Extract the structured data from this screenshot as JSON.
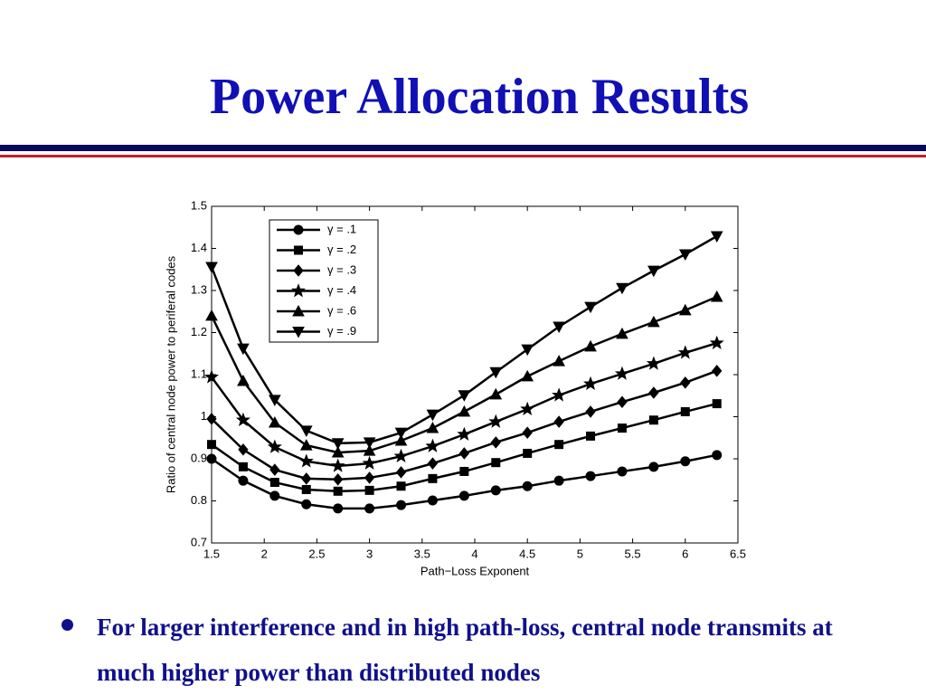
{
  "slide_title": "Power Allocation Results",
  "bullet": "For larger interference and in high path-loss, central node transmits at much higher power than distributed nodes",
  "chart_data": {
    "type": "line",
    "x_label": "Path−Loss Exponent",
    "y_label": "Ratio of central node power to periferal codes",
    "x": [
      1.5,
      1.8,
      2.1,
      2.4,
      2.7,
      3.0,
      3.3,
      3.6,
      3.9,
      4.2,
      4.5,
      4.8,
      5.1,
      5.4,
      5.7,
      6.0,
      6.3
    ],
    "series": [
      {
        "name": "γ = .1",
        "color": "#000000",
        "marker": "circle",
        "values": [
          0.9,
          0.848,
          0.812,
          0.792,
          0.782,
          0.782,
          0.79,
          0.801,
          0.812,
          0.825,
          0.835,
          0.848,
          0.859,
          0.87,
          0.881,
          0.894,
          0.909
        ]
      },
      {
        "name": "γ = .2",
        "color": "#000000",
        "marker": "square",
        "values": [
          0.934,
          0.881,
          0.844,
          0.827,
          0.823,
          0.825,
          0.835,
          0.853,
          0.87,
          0.891,
          0.913,
          0.934,
          0.954,
          0.973,
          0.992,
          1.012,
          1.031
        ]
      },
      {
        "name": "γ = .3",
        "color": "#000000",
        "marker": "diamond",
        "values": [
          0.995,
          0.922,
          0.874,
          0.853,
          0.851,
          0.855,
          0.868,
          0.889,
          0.913,
          0.939,
          0.962,
          0.988,
          1.012,
          1.035,
          1.057,
          1.081,
          1.109
        ]
      },
      {
        "name": "γ = .4",
        "color": "#000000",
        "marker": "star",
        "values": [
          1.094,
          0.992,
          0.928,
          0.894,
          0.883,
          0.889,
          0.906,
          0.93,
          0.958,
          0.988,
          1.018,
          1.051,
          1.078,
          1.102,
          1.126,
          1.152,
          1.175
        ]
      },
      {
        "name": "γ = .6",
        "color": "#000000",
        "marker": "triangle-up",
        "values": [
          1.24,
          1.085,
          0.986,
          0.932,
          0.915,
          0.919,
          0.943,
          0.973,
          1.012,
          1.053,
          1.096,
          1.132,
          1.167,
          1.197,
          1.225,
          1.253,
          1.285
        ]
      },
      {
        "name": "γ = .9",
        "color": "#000000",
        "marker": "triangle-down",
        "values": [
          1.356,
          1.162,
          1.04,
          0.967,
          0.937,
          0.939,
          0.962,
          1.005,
          1.051,
          1.106,
          1.16,
          1.214,
          1.261,
          1.306,
          1.347,
          1.386,
          1.429
        ]
      }
    ],
    "xlim": [
      1.5,
      6.5
    ],
    "xticks": [
      1.5,
      2,
      2.5,
      3,
      3.5,
      4,
      4.5,
      5,
      5.5,
      6,
      6.5
    ],
    "ylim": [
      0.7,
      1.5
    ],
    "yticks": [
      0.7,
      0.8,
      0.9,
      1,
      1.1,
      1.2,
      1.3,
      1.4,
      1.5
    ],
    "grid": false,
    "legend": "upper left"
  }
}
